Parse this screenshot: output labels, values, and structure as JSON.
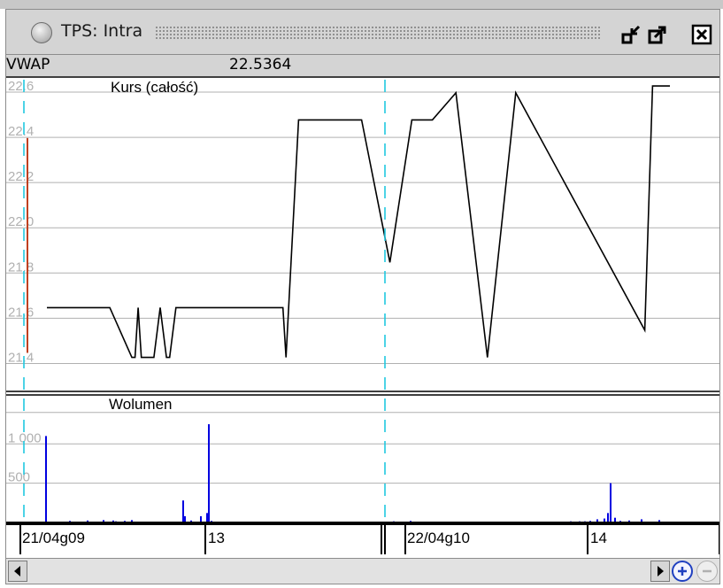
{
  "window": {
    "title": "TPS: Intra",
    "buttons": [
      "restore-icon",
      "maximize-icon",
      "close-icon"
    ]
  },
  "header": {
    "vwap_label": "VWAP",
    "vwap_value": "22.5364"
  },
  "chart_data": [
    {
      "type": "line",
      "title": "Kurs (całość)",
      "ylim": [
        21.3,
        22.6
      ],
      "yticks": [
        "22.6",
        "22.4",
        "22.2",
        "22.0",
        "21.8",
        "21.6",
        "21.4"
      ],
      "ytick_values": [
        22.6,
        22.4,
        22.2,
        22.0,
        21.8,
        21.6,
        21.4
      ],
      "grid": true,
      "series": [
        {
          "color": "#000000",
          "x": [
            0,
            4,
            26,
            40,
            54,
            56,
            58,
            60,
            62,
            64,
            68,
            72,
            76,
            78,
            82,
            90,
            99,
            116,
            150,
            152,
            160,
            196,
            200,
            218,
            232,
            245,
            260,
            280,
            298,
            380,
            385,
            386,
            392,
            396
          ],
          "values": [
            21.6,
            21.6,
            21.6,
            21.6,
            21.38,
            21.38,
            21.6,
            21.38,
            21.38,
            21.38,
            21.38,
            21.6,
            21.38,
            21.38,
            21.6,
            21.6,
            21.6,
            21.6,
            21.6,
            21.38,
            22.43,
            22.43,
            22.43,
            21.8,
            22.43,
            22.43,
            22.55,
            21.38,
            22.55,
            21.5,
            22.58,
            22.58,
            22.58,
            22.58
          ]
        }
      ]
    },
    {
      "type": "bar",
      "title": "Wolumen",
      "ylim": [
        0,
        1600
      ],
      "yticks": [
        "1 000",
        "500"
      ],
      "ytick_values": [
        1000,
        500
      ],
      "grid": true,
      "series": [
        {
          "color": "#0000e0",
          "x": [
            13,
            40,
            60,
            78,
            89,
            92,
            95,
            102,
            110,
            168,
            170,
            177,
            188,
            195,
            197,
            200,
            406,
            414,
            425,
            444,
            606,
            616,
            622,
            628,
            636,
            644,
            648,
            651,
            656,
            662,
            672,
            686,
            706
          ],
          "values": [
            1100,
            20,
            25,
            30,
            25,
            15,
            10,
            20,
            30,
            280,
            80,
            25,
            80,
            120,
            1250,
            20,
            15,
            10,
            20,
            10,
            15,
            15,
            15,
            20,
            40,
            50,
            120,
            500,
            60,
            20,
            25,
            40,
            30
          ]
        }
      ]
    }
  ],
  "time_axis": {
    "labels": [
      "21/04g09",
      "13",
      "22/04g10",
      "14"
    ]
  },
  "scrollbar": {
    "left_arrow": "left-arrow-icon",
    "right_arrow": "right-arrow-icon",
    "zoom_in": "zoom-in-icon",
    "zoom_out": "zoom-out-icon"
  }
}
